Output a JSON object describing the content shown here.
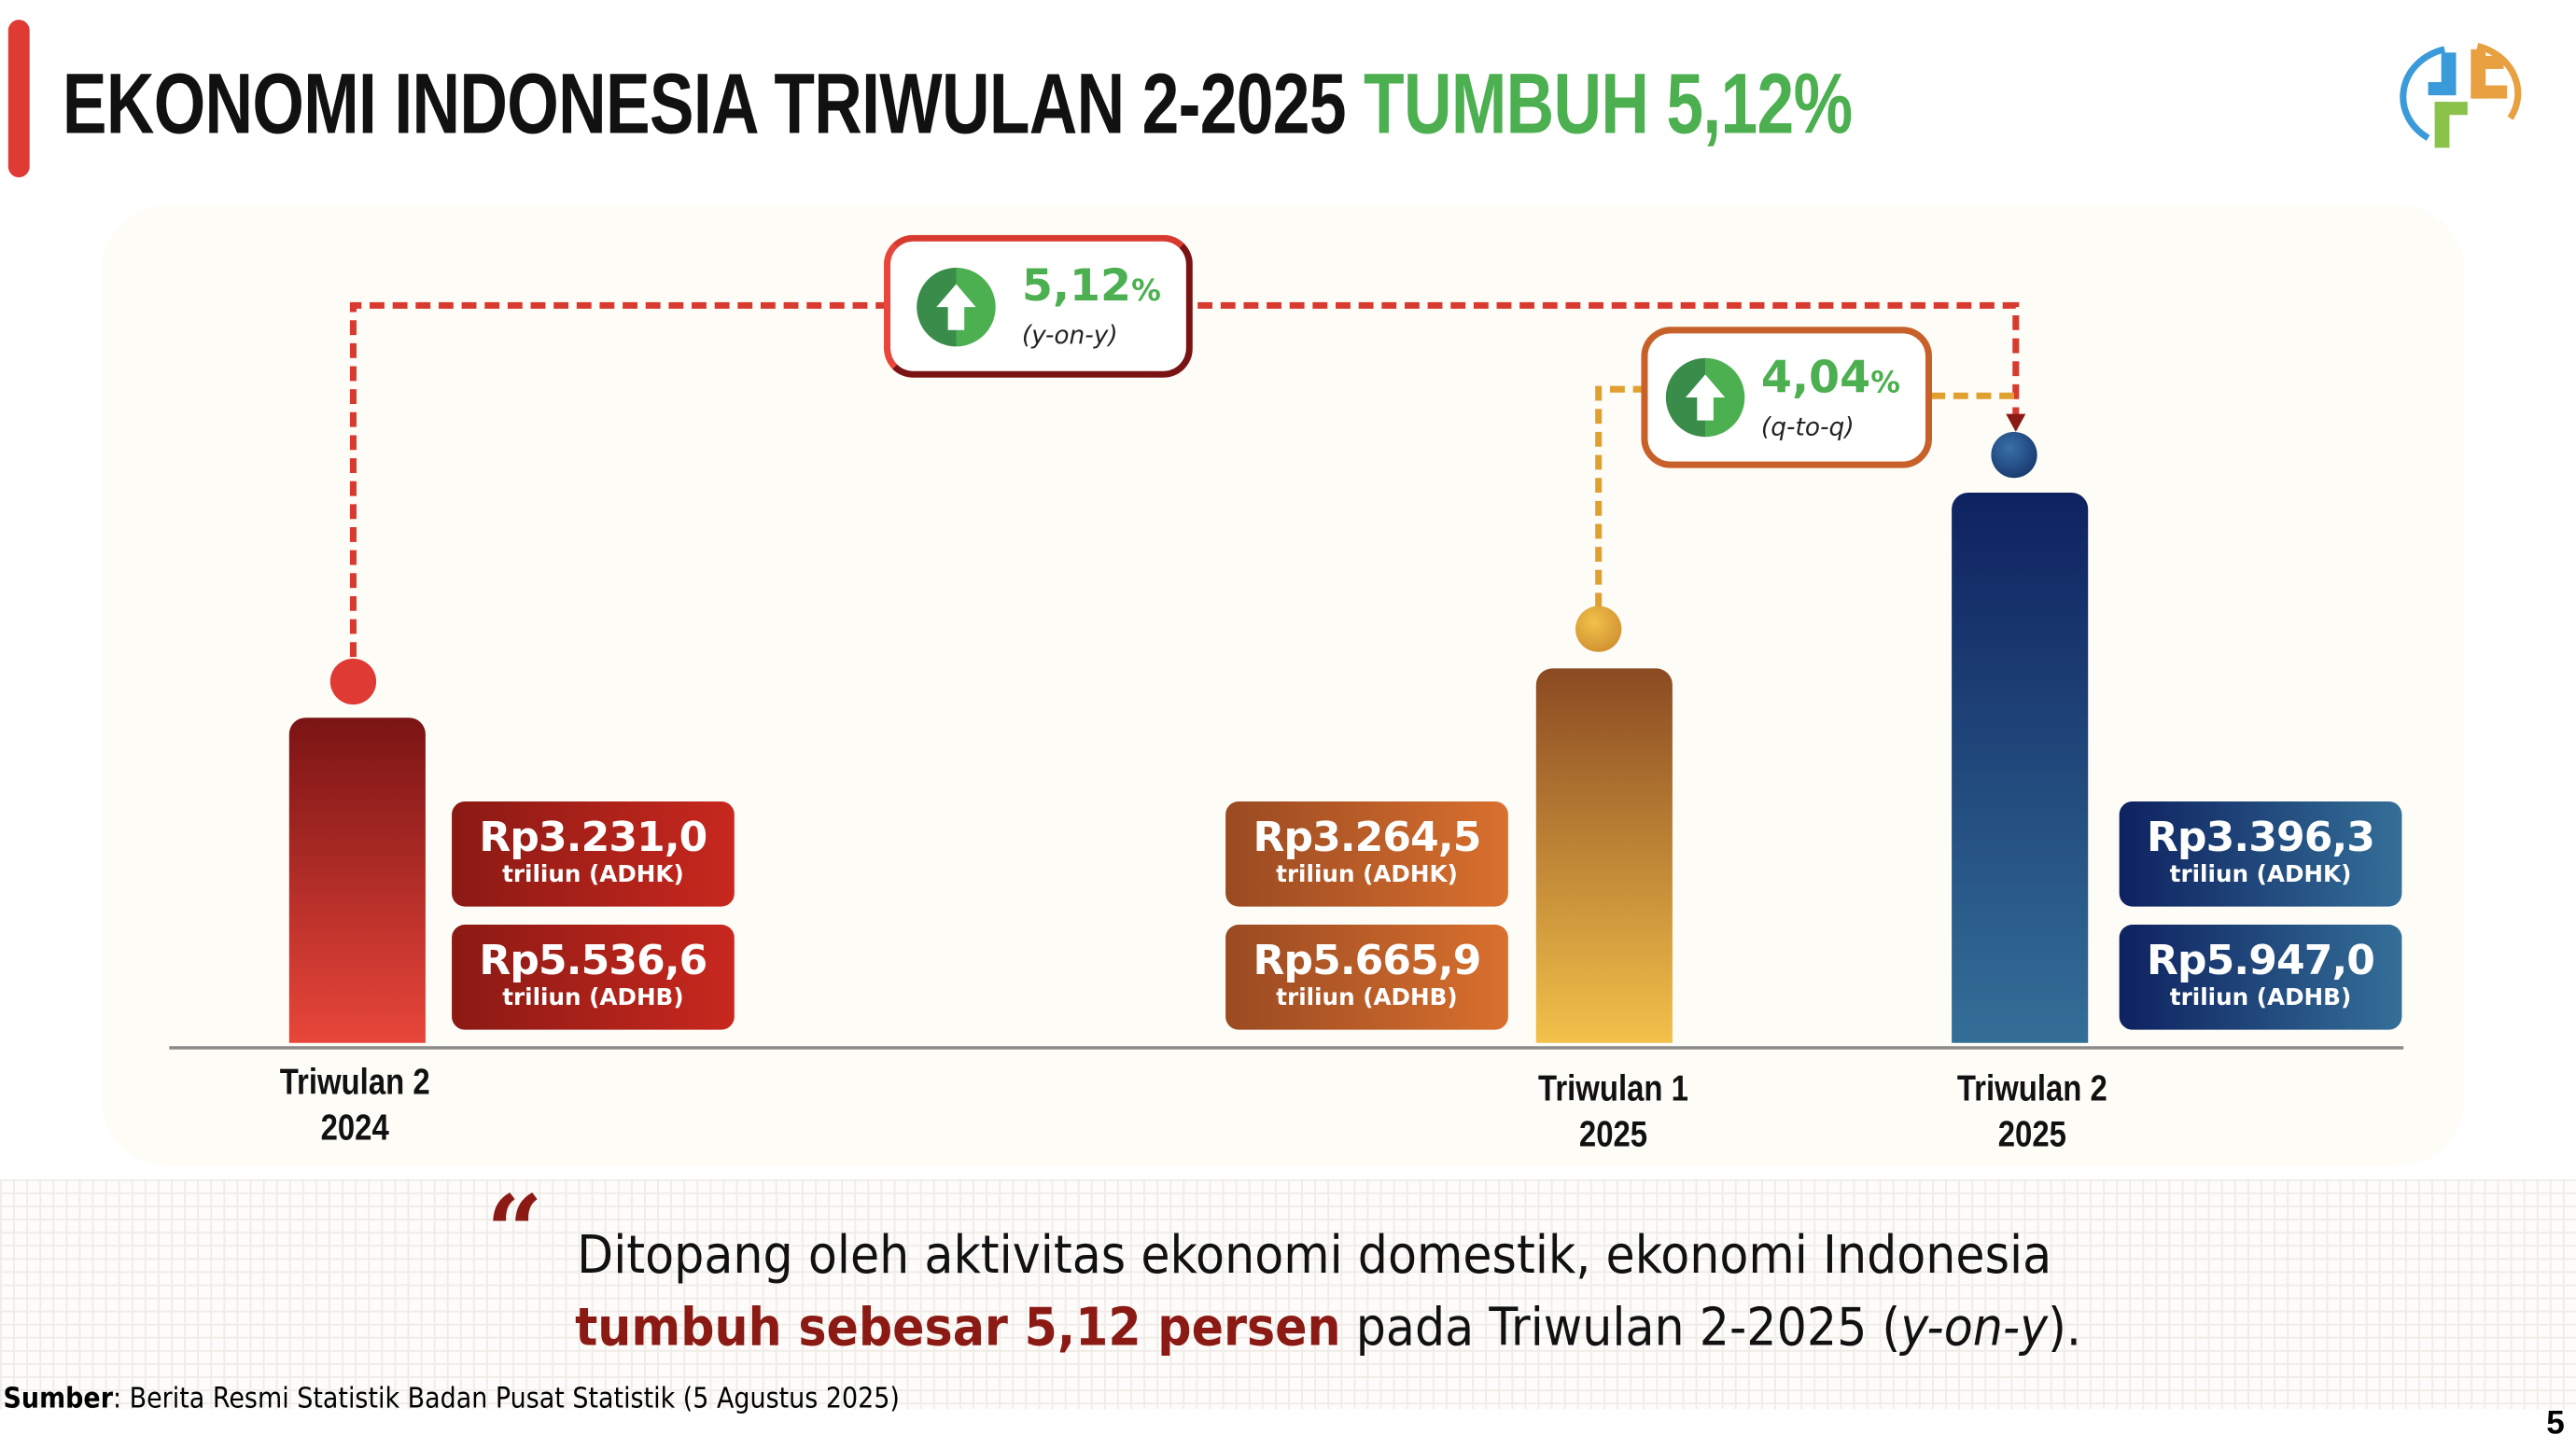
{
  "header": {
    "title_main": "EKONOMI INDONESIA TRIWULAN 2-2025",
    "title_highlight": "TUMBUH 5,12%",
    "logo_icon": "bps-logo-icon"
  },
  "colors": {
    "green": "#4caf50",
    "red": "#e03a35",
    "dark_red": "#8b1a14",
    "navy": "#0e2260",
    "orange": "#c8602a"
  },
  "chart_data": {
    "type": "bar",
    "categories": [
      "Triwulan 2 2024",
      "Triwulan 1 2025",
      "Triwulan 2 2025"
    ],
    "series": [
      {
        "name": "triliun (ADHK)",
        "values": [
          3231.0,
          3264.5,
          3396.3
        ]
      },
      {
        "name": "triliun (ADHB)",
        "values": [
          5536.6,
          5665.9,
          5947.0
        ]
      }
    ]
  },
  "bars": [
    {
      "label1": "Triwulan 2",
      "label2": "2024",
      "adhk": "Rp3.231,0",
      "adhk_unit": "triliun (ADHK)",
      "adhb": "Rp5.536,6",
      "adhb_unit": "triliun (ADHB)"
    },
    {
      "label1": "Triwulan 1",
      "label2": "2025",
      "adhk": "Rp3.264,5",
      "adhk_unit": "triliun (ADHK)",
      "adhb": "Rp5.665,9",
      "adhb_unit": "triliun (ADHB)"
    },
    {
      "label1": "Triwulan 2",
      "label2": "2025",
      "adhk": "Rp3.396,3",
      "adhk_unit": "triliun (ADHK)",
      "adhb": "Rp5.947,0",
      "adhb_unit": "triliun (ADHB)"
    }
  ],
  "callouts": {
    "yoy": {
      "value": "5,12",
      "unit": "%",
      "label": "(y-on-y)",
      "icon": "arrow-up-icon"
    },
    "qtq": {
      "value": "4,04",
      "unit": "%",
      "label": "(q-to-q)",
      "icon": "arrow-up-icon"
    }
  },
  "quote": {
    "line1": "Ditopang oleh aktivitas ekonomi domestik, ekonomi Indonesia",
    "line2_bold": "tumbuh sebesar 5,12 persen",
    "line2_rest": " pada Triwulan 2-2025 (",
    "line2_italic": "y-on-y",
    "line2_end": ")."
  },
  "source": {
    "label": "Sumber",
    "text": ": Berita Resmi Statistik Badan Pusat Statistik (5 Agustus 2025)"
  },
  "page_number": "5"
}
